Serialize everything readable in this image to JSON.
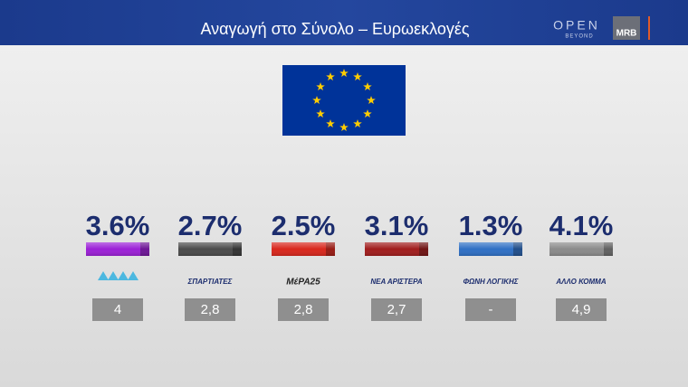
{
  "header": {
    "title": "Αναγωγή στο Σύνολο – Ευρωεκλογές",
    "brand": "OPEN",
    "brand_sub": "BEYOND",
    "pollster": "MRB"
  },
  "parties": [
    {
      "percent": "3.6%",
      "color": "#9b1fd6",
      "box": "4"
    },
    {
      "percent": "2.7%",
      "color": "#4a4a4a",
      "logo": "ΣΠΑΡΤΙΑΤΕΣ",
      "box": "2,8"
    },
    {
      "percent": "2.5%",
      "color": "#d8261c",
      "logo": "ΜέΡΑ25",
      "box": "2,8"
    },
    {
      "percent": "3.1%",
      "color": "#a01c1c",
      "logo": "ΝΕΑ ΑΡΙΣΤΕΡΑ",
      "box": "2,7"
    },
    {
      "percent": "1.3%",
      "color": "#2e6fc4",
      "logo": "ΦΩΝΗ ΛΟΓΙΚΗΣ",
      "box": "-"
    },
    {
      "percent": "4.1%",
      "color": "#8a8a8a",
      "logo": "ΑΛΛΟ ΚΟΜΜΑ",
      "box": "4,9"
    }
  ]
}
